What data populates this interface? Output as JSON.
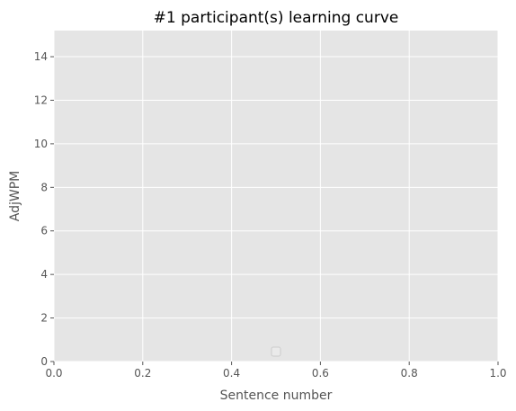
{
  "chart_data": {
    "type": "line",
    "title": "#1 participant(s) learning curve",
    "xlabel": "Sentence number",
    "ylabel": "AdjWPM",
    "xlim": [
      0,
      1
    ],
    "ylim": [
      0,
      15.2
    ],
    "xticks": [
      0.0,
      0.2,
      0.4,
      0.6,
      0.8,
      1.0
    ],
    "xtick_labels": [
      "0.0",
      "0.2",
      "0.4",
      "0.6",
      "0.8",
      "1.0"
    ],
    "yticks": [
      0,
      2,
      4,
      6,
      8,
      10,
      12,
      14
    ],
    "ytick_labels": [
      "0",
      "2",
      "4",
      "6",
      "8",
      "10",
      "12",
      "14"
    ],
    "series": [],
    "grid": true,
    "legend": {
      "placement": "lower center",
      "entries": []
    },
    "colors": {
      "plot_background": "#e5e5e5",
      "grid": "#ffffff",
      "tick": "#555555",
      "text": "#555555",
      "title": "#000000"
    }
  }
}
